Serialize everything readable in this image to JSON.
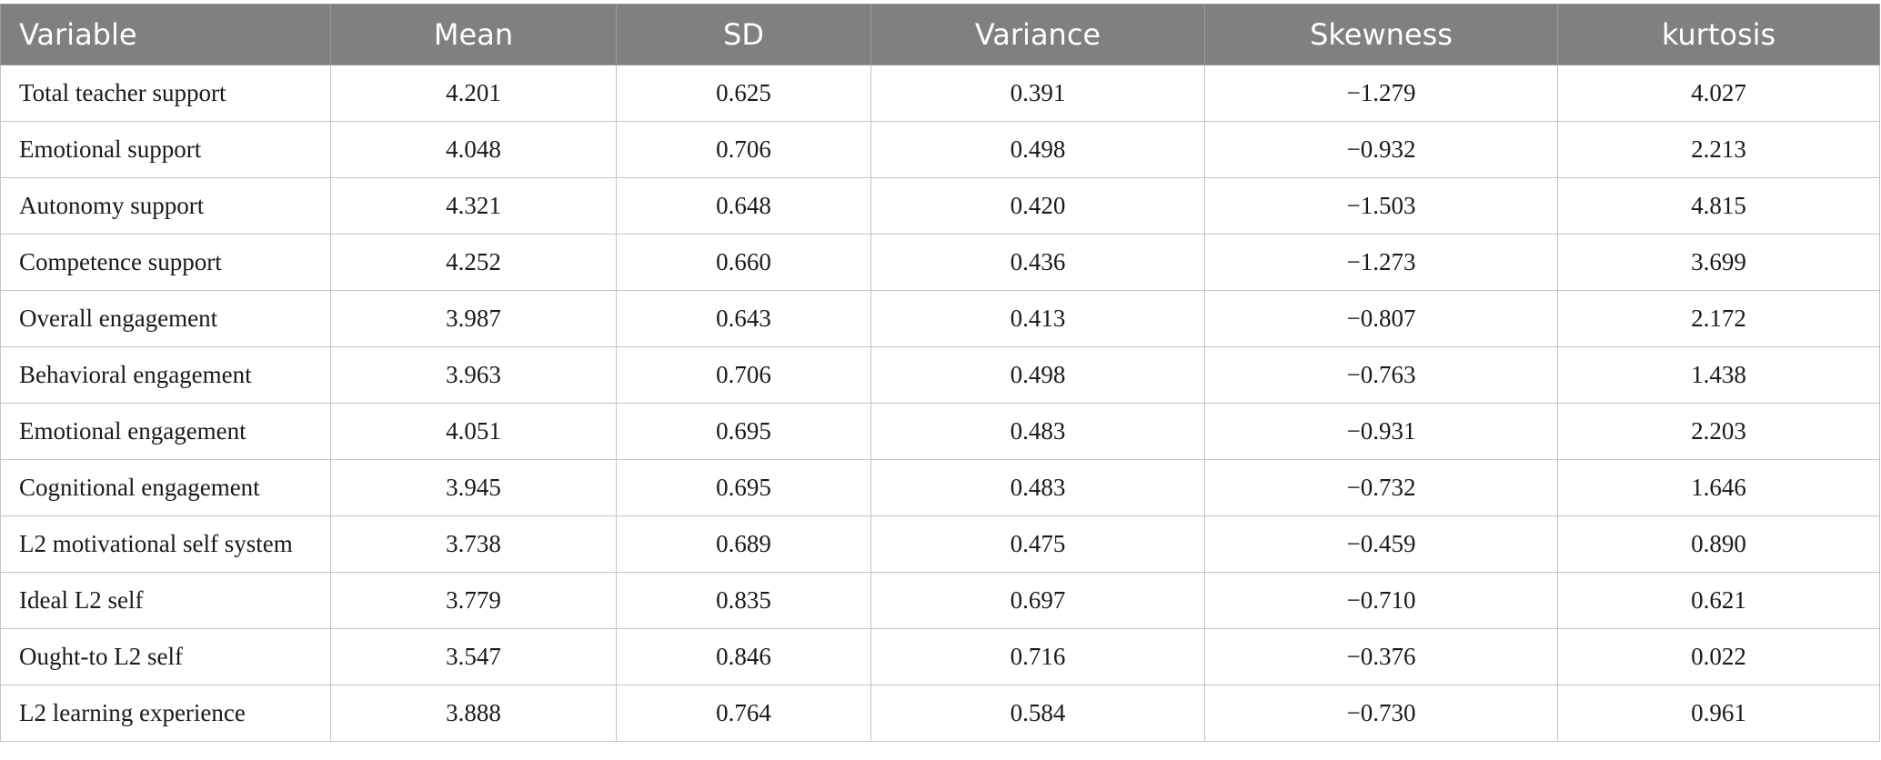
{
  "table": {
    "columns": [
      "Variable",
      "Mean",
      "SD",
      "Variance",
      "Skewness",
      "kurtosis"
    ],
    "rows": [
      [
        "Total teacher support",
        "4.201",
        "0.625",
        "0.391",
        "−1.279",
        "4.027"
      ],
      [
        "Emotional support",
        "4.048",
        "0.706",
        "0.498",
        "−0.932",
        "2.213"
      ],
      [
        "Autonomy support",
        "4.321",
        "0.648",
        "0.420",
        "−1.503",
        "4.815"
      ],
      [
        "Competence support",
        "4.252",
        "0.660",
        "0.436",
        "−1.273",
        "3.699"
      ],
      [
        "Overall engagement",
        "3.987",
        "0.643",
        "0.413",
        "−0.807",
        "2.172"
      ],
      [
        "Behavioral engagement",
        "3.963",
        "0.706",
        "0.498",
        "−0.763",
        "1.438"
      ],
      [
        "Emotional engagement",
        "4.051",
        "0.695",
        "0.483",
        "−0.931",
        "2.203"
      ],
      [
        "Cognitional engagement",
        "3.945",
        "0.695",
        "0.483",
        "−0.732",
        "1.646"
      ],
      [
        "L2 motivational self system",
        "3.738",
        "0.689",
        "0.475",
        "−0.459",
        "0.890"
      ],
      [
        "Ideal L2 self",
        "3.779",
        "0.835",
        "0.697",
        "−0.710",
        "0.621"
      ],
      [
        "Ought-to L2 self",
        "3.547",
        "0.846",
        "0.716",
        "−0.376",
        "0.022"
      ],
      [
        "L2 learning experience",
        "3.888",
        "0.764",
        "0.584",
        "−0.730",
        "0.961"
      ]
    ]
  },
  "colors": {
    "header_background": "#808080",
    "header_text": "#ffffff",
    "border": "#c4c4c4",
    "body_text": "#1a1a1a"
  }
}
